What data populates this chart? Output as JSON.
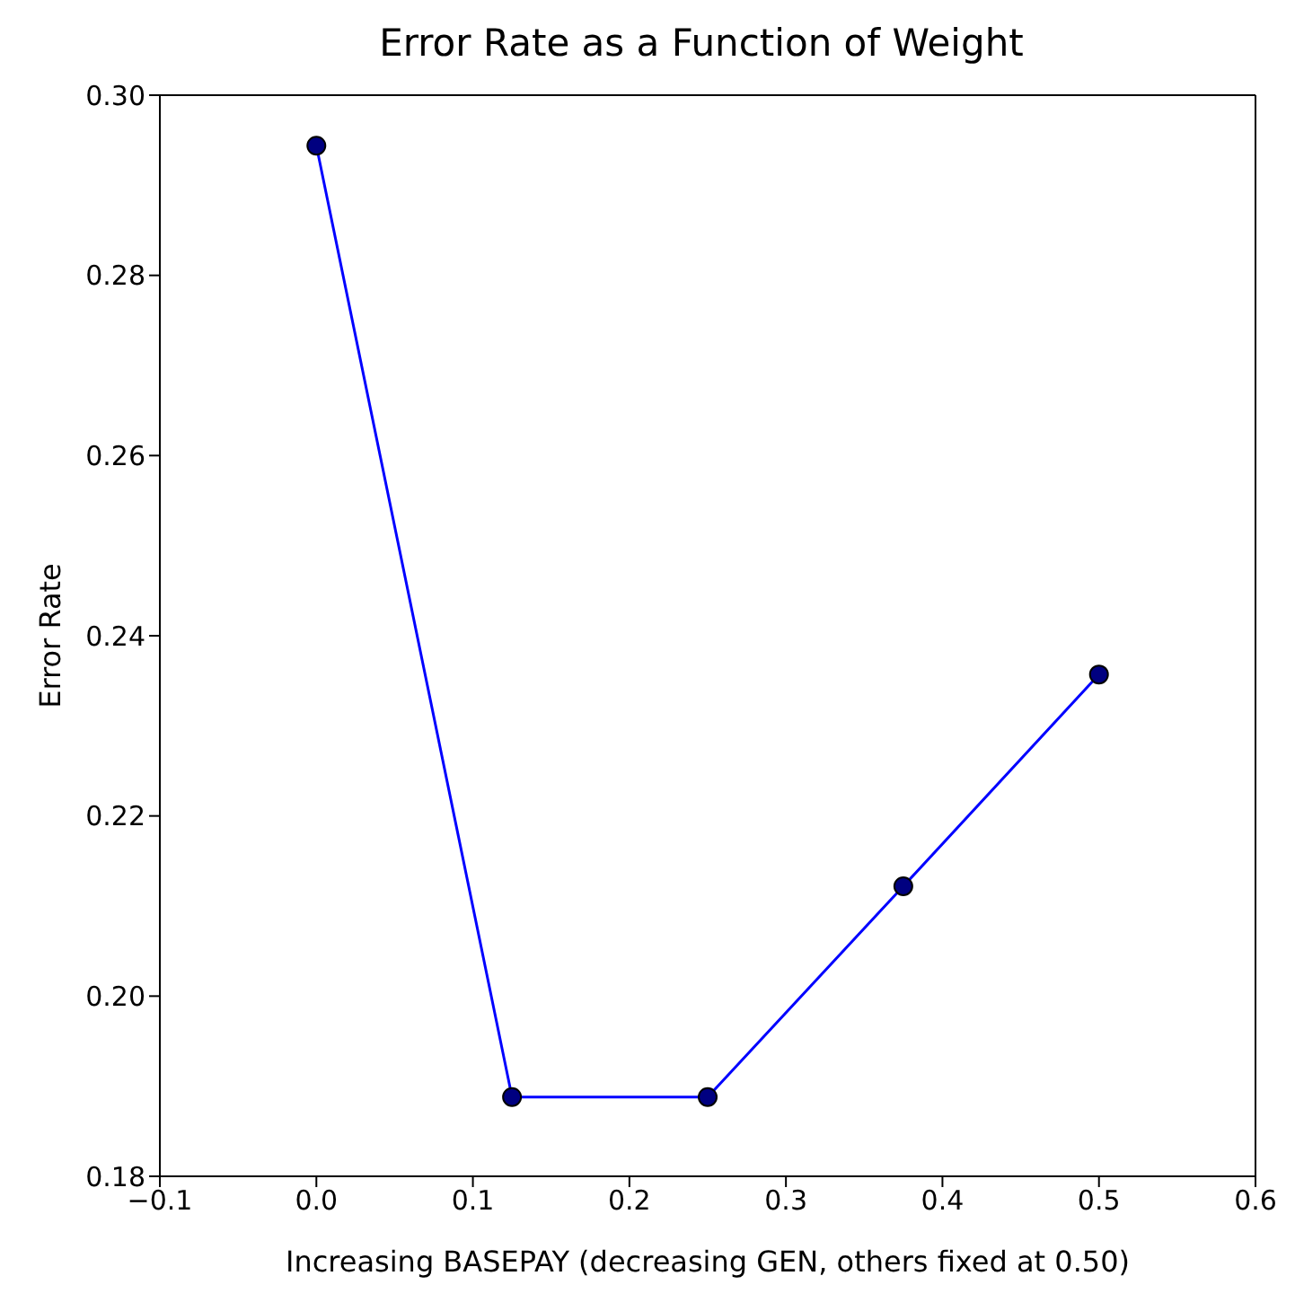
{
  "chart_data": {
    "type": "line",
    "title": "Error Rate as a Function of Weight",
    "xlabel": "Increasing BASEPAY (decreasing GEN, others fixed at 0.50)",
    "ylabel": "Error Rate",
    "x": [
      0.0,
      0.125,
      0.25,
      0.375,
      0.5
    ],
    "series": [
      {
        "color": "#0000ff",
        "values": [
          0.2944,
          0.1888,
          0.1888,
          0.2122,
          0.2357
        ]
      }
    ],
    "marker": "circle",
    "line_style": "solid",
    "grid": false,
    "legend": false,
    "xlim": [
      -0.1,
      0.6
    ],
    "xticks": [
      {
        "value": -0.1,
        "label": "−0.1"
      },
      {
        "value": 0,
        "label": "0.0"
      },
      {
        "value": 0.1,
        "label": "0.1"
      },
      {
        "value": 0.2,
        "label": "0.2"
      },
      {
        "value": 0.3,
        "label": "0.3"
      },
      {
        "value": 0.4,
        "label": "0.4"
      },
      {
        "value": 0.5,
        "label": "0.5"
      },
      {
        "value": 0.6,
        "label": "0.6"
      }
    ],
    "ylim": [
      0.18,
      0.3
    ],
    "yticks": [
      {
        "value": 0.18,
        "label": "0.18"
      },
      {
        "value": 0.2,
        "label": "0.20"
      },
      {
        "value": 0.22,
        "label": "0.22"
      },
      {
        "value": 0.24,
        "label": "0.24"
      },
      {
        "value": 0.26,
        "label": "0.26"
      },
      {
        "value": 0.28,
        "label": "0.28"
      },
      {
        "value": 0.3,
        "label": "0.30"
      }
    ]
  }
}
